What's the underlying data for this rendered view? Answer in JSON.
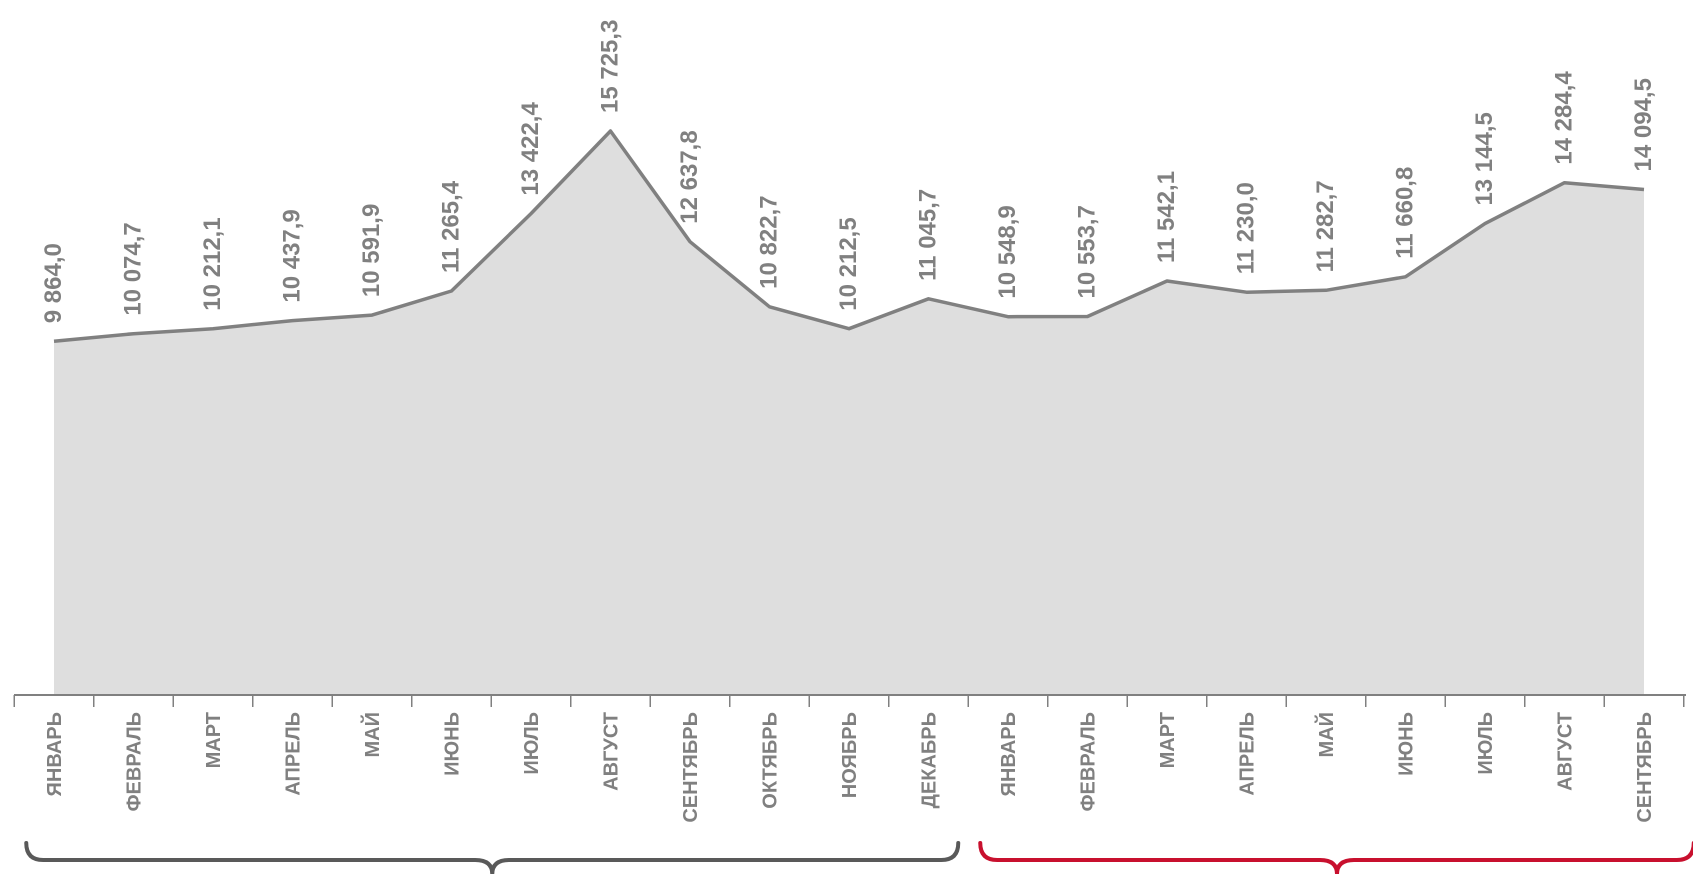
{
  "chart_data": {
    "type": "area",
    "title": "",
    "xlabel": "",
    "ylabel": "",
    "ylim": [
      0,
      17000
    ],
    "grid": false,
    "legend": "none",
    "categories": [
      "ЯНВАРЬ",
      "ФЕВРАЛЬ",
      "МАРТ",
      "АПРЕЛЬ",
      "МАЙ",
      "ИЮНЬ",
      "ИЮЛЬ",
      "АВГУСТ",
      "СЕНТЯБРЬ",
      "ОКТЯБРЬ",
      "НОЯБРЬ",
      "ДЕКАБРЬ",
      "ЯНВАРЬ",
      "ФЕВРАЛЬ",
      "МАРТ",
      "АПРЕЛЬ",
      "МАЙ",
      "ИЮНЬ",
      "ИЮЛЬ",
      "АВГУСТ",
      "СЕНТЯБРЬ"
    ],
    "values": [
      9864.0,
      10074.7,
      10212.1,
      10437.9,
      10591.9,
      11265.4,
      13422.4,
      15725.3,
      12637.8,
      10822.7,
      10212.5,
      11045.7,
      10548.9,
      10553.7,
      11542.1,
      11230.0,
      11282.7,
      11660.8,
      13144.5,
      14284.4,
      14094.5
    ],
    "value_labels": [
      "9 864,0",
      "10 074,7",
      "10 212,1",
      "10 437,9",
      "10 591,9",
      "11 265,4",
      "13 422,4",
      "15 725,3",
      "12 637,8",
      "10 822,7",
      "10 212,5",
      "11 045,7",
      "10 548,9",
      "10 553,7",
      "11 542,1",
      "11 230,0",
      "11 282,7",
      "11 660,8",
      "13 144,5",
      "14 284,4",
      "14 094,5"
    ],
    "groups": [
      {
        "start": 0,
        "end": 11,
        "color": "#595959"
      },
      {
        "start": 12,
        "end": 20,
        "color": "#c8102e"
      }
    ],
    "colors": {
      "line": "#808080",
      "fill": "#dedede",
      "axis": "#808080",
      "labels": "#808080"
    }
  }
}
